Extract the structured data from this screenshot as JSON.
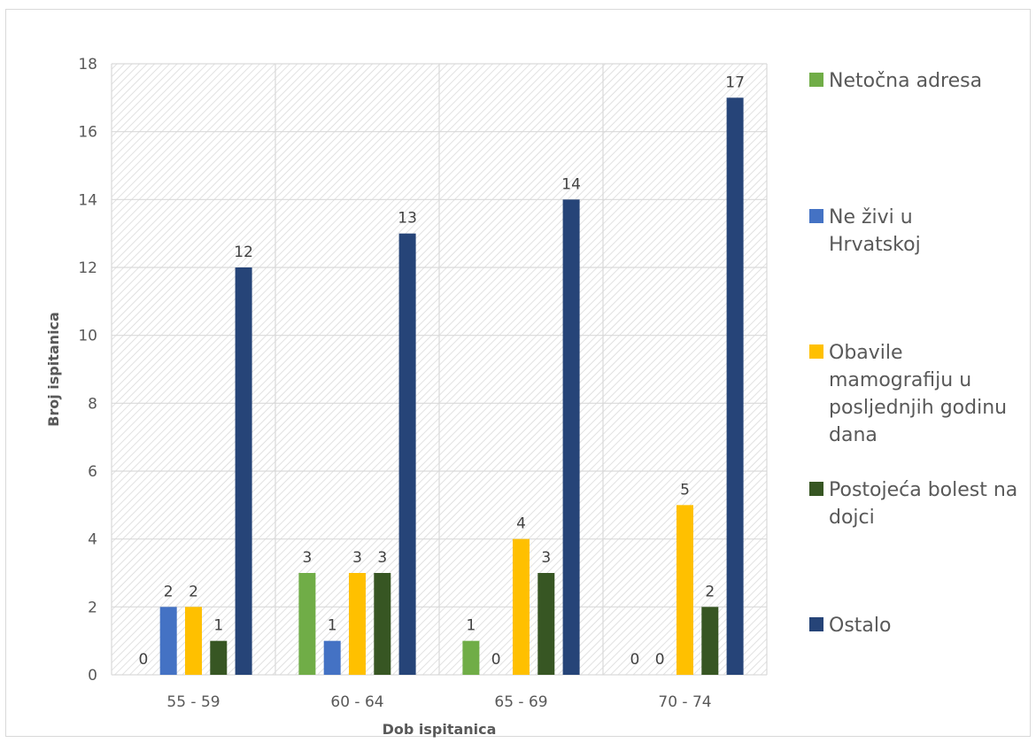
{
  "chart_data": {
    "type": "bar",
    "title": "",
    "xlabel": "Dob ispitanica",
    "ylabel": "Broj ispitanica",
    "categories": [
      "55 - 59",
      "60 - 64",
      "65 - 69",
      "70 - 74"
    ],
    "ylim": [
      0,
      18
    ],
    "yticks": [
      "0",
      "2",
      "4",
      "6",
      "8",
      "10",
      "12",
      "14",
      "16",
      "18"
    ],
    "grid": true,
    "legend_position": "right",
    "series": [
      {
        "name": "Netočna adresa",
        "color": "#70ad47",
        "values": [
          0,
          3,
          1,
          0
        ]
      },
      {
        "name": "Ne živi u Hrvatskoj",
        "color": "#4472c4",
        "values": [
          2,
          1,
          0,
          0
        ]
      },
      {
        "name": "Obavile mamografiju u posljednjih godinu dana",
        "color": "#ffc000",
        "values": [
          2,
          3,
          4,
          5
        ]
      },
      {
        "name": "Postojeća bolest na dojci",
        "color": "#375623",
        "values": [
          1,
          3,
          3,
          2
        ]
      },
      {
        "name": "Ostalo",
        "color": "#264478",
        "values": [
          12,
          13,
          14,
          17
        ]
      }
    ]
  }
}
